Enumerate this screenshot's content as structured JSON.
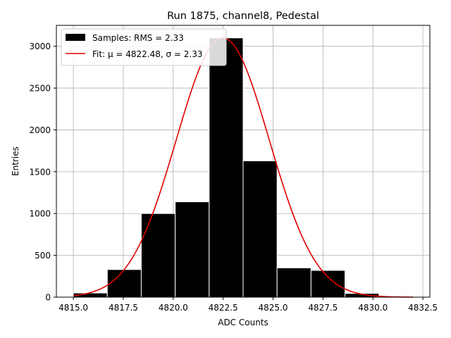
{
  "chart_data": {
    "type": "bar",
    "title": "Run 1875, channel8, Pedestal",
    "xlabel": "ADC Counts",
    "ylabel": "Entries",
    "xlim": [
      4814.15,
      4832.85
    ],
    "ylim": [
      0,
      3250
    ],
    "grid": true,
    "legend_position": "top-left",
    "x_ticks": [
      {
        "value": 4815.0,
        "label": "4815.0"
      },
      {
        "value": 4817.5,
        "label": "4817.5"
      },
      {
        "value": 4820.0,
        "label": "4820.0"
      },
      {
        "value": 4822.5,
        "label": "4822.5"
      },
      {
        "value": 4825.0,
        "label": "4825.0"
      },
      {
        "value": 4827.5,
        "label": "4827.5"
      },
      {
        "value": 4830.0,
        "label": "4830.0"
      },
      {
        "value": 4832.5,
        "label": "4832.5"
      }
    ],
    "y_ticks": [
      {
        "value": 0,
        "label": "0"
      },
      {
        "value": 500,
        "label": "500"
      },
      {
        "value": 1000,
        "label": "1000"
      },
      {
        "value": 1500,
        "label": "1500"
      },
      {
        "value": 2000,
        "label": "2000"
      },
      {
        "value": 2500,
        "label": "2500"
      },
      {
        "value": 3000,
        "label": "3000"
      }
    ],
    "histogram": {
      "name": "Samples: RMS = 2.33",
      "color": "#000000",
      "edge_color": "#ffffff",
      "bin_edges": [
        4815.0,
        4816.7,
        4818.4,
        4820.1,
        4821.8,
        4823.5,
        4825.2,
        4826.9,
        4828.6,
        4830.3,
        4832.0
      ],
      "counts": [
        50,
        330,
        1000,
        1140,
        3100,
        1630,
        350,
        320,
        45,
        0
      ]
    },
    "fit": {
      "name_prefix": "Fit: ",
      "name_formula": "μ = 4822.48, σ = 2.33",
      "color": "#e00000",
      "mu": 4822.48,
      "sigma": 2.33,
      "amplitude": 3100,
      "x_range": [
        4815.0,
        4832.0
      ]
    }
  }
}
